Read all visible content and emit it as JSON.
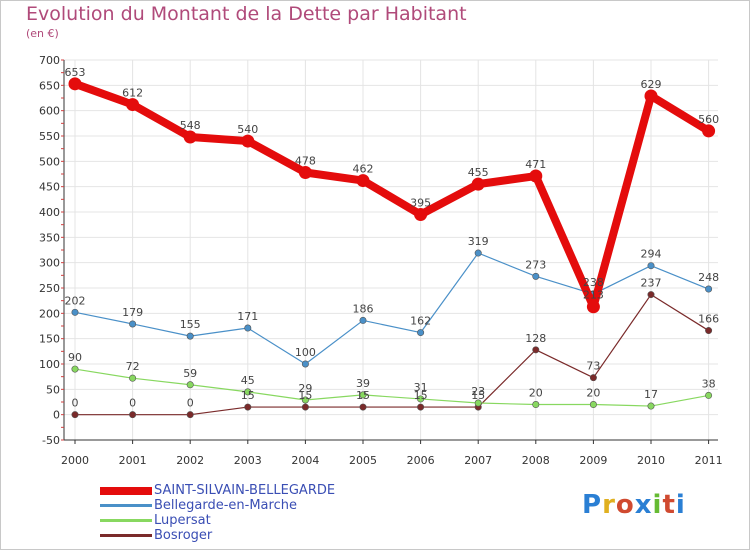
{
  "title": "Evolution du Montant de la Dette par Habitant",
  "subtitle": "(en €)",
  "logo": {
    "text": "Proxiti",
    "colors": [
      "#2a7fd4",
      "#e0b020",
      "#d04a30",
      "#2a7fd4",
      "#66bb33",
      "#d04a30",
      "#2a7fd4"
    ]
  },
  "chart_data": {
    "type": "line",
    "x": [
      "2000",
      "2001",
      "2002",
      "2003",
      "2004",
      "2005",
      "2006",
      "2007",
      "2008",
      "2009",
      "2010",
      "2011"
    ],
    "ylim": [
      -50,
      700
    ],
    "yticks": [
      -50,
      0,
      50,
      100,
      150,
      200,
      250,
      300,
      350,
      400,
      450,
      500,
      550,
      600,
      650,
      700
    ],
    "grid": true,
    "legend_position": "bottom",
    "title": "Evolution du Montant de la Dette par Habitant",
    "xlabel": "",
    "ylabel": "(en €)",
    "series": [
      {
        "name": "SAINT-SILVAIN-BELLEGARDE",
        "color": "#e40c0c",
        "width": 8,
        "values": [
          653,
          612,
          548,
          540,
          478,
          462,
          395,
          455,
          471,
          213,
          629,
          560
        ],
        "labels": [
          "653",
          "612",
          "548",
          "540",
          "478",
          "462",
          "395",
          "455",
          "471",
          "213",
          "629",
          "560"
        ]
      },
      {
        "name": "Bellegarde-en-Marche",
        "color": "#4a90c8",
        "width": 1.2,
        "values": [
          202,
          179,
          155,
          171,
          100,
          186,
          162,
          319,
          273,
          238,
          294,
          248
        ],
        "labels": [
          "202",
          "179",
          "155",
          "171",
          "100",
          "186",
          "162",
          "319",
          "273",
          "238",
          "294",
          "248"
        ]
      },
      {
        "name": "Lupersat",
        "color": "#88d860",
        "width": 1.2,
        "values": [
          90,
          72,
          59,
          45,
          29,
          39,
          31,
          23,
          20,
          20,
          17,
          38
        ],
        "labels": [
          "90",
          "72",
          "59",
          "45",
          "29",
          "39",
          "31",
          "23",
          "20",
          "20",
          "17",
          "38"
        ]
      },
      {
        "name": "Bosroger",
        "color": "#7a2a2a",
        "width": 1.2,
        "values": [
          0,
          0,
          0,
          15,
          15,
          15,
          15,
          15,
          128,
          73,
          237,
          166
        ],
        "labels": [
          "0",
          "0",
          "0",
          "15",
          "15",
          "15",
          "15",
          "15",
          "128",
          "73",
          "237",
          "166"
        ]
      }
    ]
  }
}
